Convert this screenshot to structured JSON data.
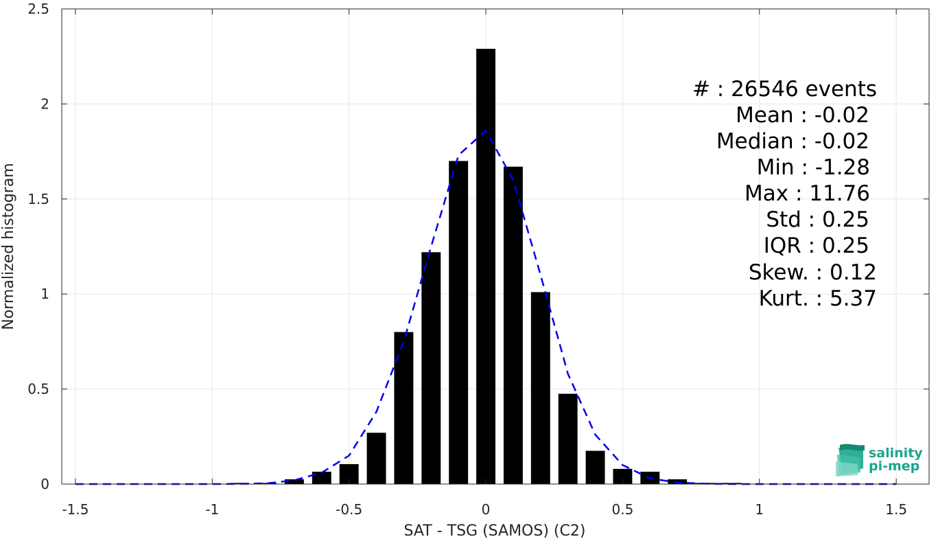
{
  "chart_data": {
    "type": "bar",
    "xlabel": "SAT - TSG (SAMOS) (C2)",
    "ylabel": "Normalized histogram",
    "xlim": [
      -1.55,
      1.62
    ],
    "ylim": [
      0,
      2.5
    ],
    "xticks": [
      -1.5,
      -1,
      -0.5,
      0,
      0.5,
      1,
      1.5
    ],
    "xtick_labels": [
      "-1.5",
      "-1",
      "-0.5",
      "0",
      "0.5",
      "1",
      "1.5"
    ],
    "yticks": [
      0,
      0.5,
      1,
      1.5,
      2,
      2.5
    ],
    "ytick_labels": [
      "0",
      "0.5",
      "1",
      "1.5",
      "2",
      "2.5"
    ],
    "grid": true,
    "bar_color": "#000000",
    "bar_width": 0.07,
    "bars": {
      "x": [
        -1.5,
        -1.4,
        -1.3,
        -1.2,
        -1.1,
        -1.0,
        -0.9,
        -0.8,
        -0.7,
        -0.6,
        -0.5,
        -0.4,
        -0.3,
        -0.2,
        -0.1,
        0.0,
        0.1,
        0.2,
        0.3,
        0.4,
        0.5,
        0.6,
        0.7,
        0.8,
        0.9,
        1.0,
        1.1,
        1.2,
        1.3,
        1.4,
        1.5
      ],
      "values": [
        0,
        0,
        0,
        0,
        0,
        0.002,
        0.006,
        0.006,
        0.025,
        0.065,
        0.105,
        0.27,
        0.8,
        1.22,
        1.7,
        2.29,
        1.67,
        1.01,
        0.475,
        0.175,
        0.08,
        0.065,
        0.025,
        0.006,
        0.006,
        0.002,
        0,
        0,
        0,
        0,
        0
      ]
    },
    "fit_curve": {
      "name": "",
      "style": "dashed",
      "color": "#0000ee",
      "x": [
        -1.5,
        -1.4,
        -1.3,
        -1.2,
        -1.1,
        -1.0,
        -0.9,
        -0.8,
        -0.7,
        -0.6,
        -0.5,
        -0.4,
        -0.3,
        -0.2,
        -0.1,
        0.0,
        0.1,
        0.2,
        0.3,
        0.4,
        0.5,
        0.6,
        0.7,
        0.8,
        0.9,
        1.0,
        1.1,
        1.2,
        1.3,
        1.4,
        1.5
      ],
      "values": [
        0,
        0,
        0,
        0,
        0,
        0,
        0.001,
        0.004,
        0.02,
        0.06,
        0.15,
        0.38,
        0.75,
        1.25,
        1.73,
        1.86,
        1.6,
        1.1,
        0.58,
        0.26,
        0.1,
        0.03,
        0.008,
        0.002,
        0,
        0,
        0,
        0,
        0,
        0,
        0
      ]
    },
    "annotations": [
      "#  : 26546 events",
      "Mean : -0.02",
      "Median : -0.02",
      "Min : -1.28",
      "Max : 11.76",
      "Std : 0.25",
      "IQR : 0.25",
      "Skew. : 0.12",
      "Kurt. : 5.37"
    ],
    "logo": {
      "line1": "salinity",
      "line2": "pi-mep"
    }
  }
}
